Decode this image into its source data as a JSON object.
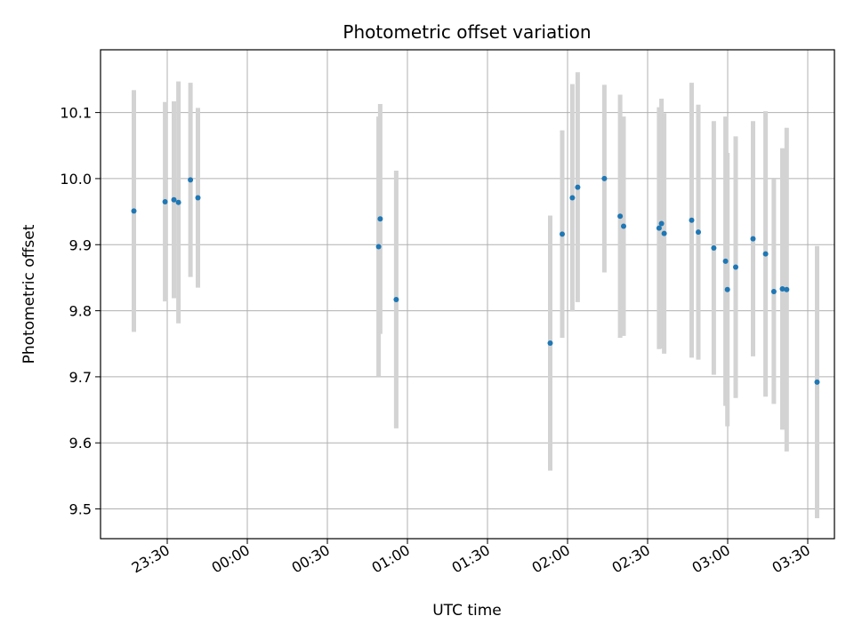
{
  "chart_data": {
    "type": "scatter",
    "title": "Photometric offset variation",
    "xlabel": "UTC time",
    "ylabel": "Photometric offset",
    "x_unit": "UTC HH:MM (crosses midnight)",
    "x_ticks": [
      "23:30",
      "00:00",
      "00:30",
      "01:00",
      "01:30",
      "02:00",
      "02:30",
      "03:00",
      "03:30"
    ],
    "y_ticks": [
      "9.5",
      "9.6",
      "9.7",
      "9.8",
      "9.9",
      "10.0",
      "10.1"
    ],
    "ylim": [
      9.455,
      10.195
    ],
    "xlim": [
      "23:17.5",
      "03:33.5"
    ],
    "grid": true,
    "colors": {
      "point": "#1f77b4",
      "errorbar": "#d3d3d3",
      "grid": "#b0b0b0"
    },
    "points": [
      {
        "x": "23:17.5",
        "y": 9.951,
        "err": 0.183
      },
      {
        "x": "23:29.2",
        "y": 9.965,
        "err": 0.151
      },
      {
        "x": "23:32.5",
        "y": 9.968,
        "err": 0.149
      },
      {
        "x": "23:34.2",
        "y": 9.964,
        "err": 0.183
      },
      {
        "x": "23:38.7",
        "y": 9.998,
        "err": 0.147
      },
      {
        "x": "23:41.5",
        "y": 9.971,
        "err": 0.136
      },
      {
        "x": "00:49.2",
        "y": 9.897,
        "err": 0.197
      },
      {
        "x": "00:49.8",
        "y": 9.939,
        "err": 0.174
      },
      {
        "x": "00:55.8",
        "y": 9.817,
        "err": 0.195
      },
      {
        "x": "01:53.5",
        "y": 9.751,
        "err": 0.193
      },
      {
        "x": "01:58.0",
        "y": 9.916,
        "err": 0.157
      },
      {
        "x": "02:01.8",
        "y": 9.971,
        "err": 0.172
      },
      {
        "x": "02:03.8",
        "y": 9.987,
        "err": 0.174
      },
      {
        "x": "02:13.8",
        "y": 10.0,
        "err": 0.142
      },
      {
        "x": "02:19.7",
        "y": 9.943,
        "err": 0.184
      },
      {
        "x": "02:21.0",
        "y": 9.928,
        "err": 0.166
      },
      {
        "x": "02:34.3",
        "y": 9.925,
        "err": 0.183
      },
      {
        "x": "02:35.2",
        "y": 9.932,
        "err": 0.189
      },
      {
        "x": "02:36.2",
        "y": 9.917,
        "err": 0.182
      },
      {
        "x": "02:46.5",
        "y": 9.937,
        "err": 0.208
      },
      {
        "x": "02:49.0",
        "y": 9.919,
        "err": 0.193
      },
      {
        "x": "02:54.8",
        "y": 9.895,
        "err": 0.192
      },
      {
        "x": "02:59.2",
        "y": 9.875,
        "err": 0.219
      },
      {
        "x": "02:59.9",
        "y": 9.832,
        "err": 0.207
      },
      {
        "x": "03:03.0",
        "y": 9.866,
        "err": 0.198
      },
      {
        "x": "03:09.5",
        "y": 9.909,
        "err": 0.178
      },
      {
        "x": "03:14.2",
        "y": 9.886,
        "err": 0.216
      },
      {
        "x": "03:17.3",
        "y": 9.829,
        "err": 0.17
      },
      {
        "x": "03:20.5",
        "y": 9.833,
        "err": 0.213
      },
      {
        "x": "03:22.1",
        "y": 9.832,
        "err": 0.245
      },
      {
        "x": "03:33.5",
        "y": 9.692,
        "err": 0.206
      }
    ]
  }
}
